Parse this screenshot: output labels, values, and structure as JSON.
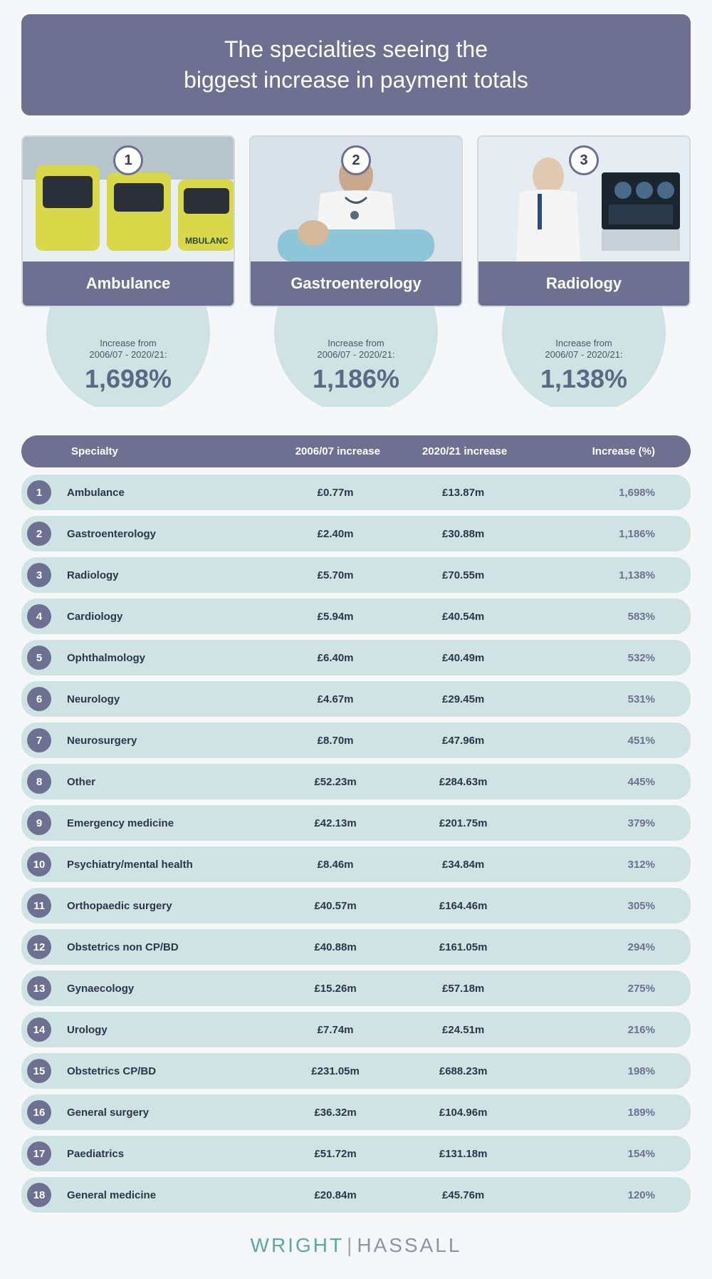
{
  "title": "The specialties seeing the\nbiggest increase in payment totals",
  "colors": {
    "banner": "#6e7091",
    "row_bg": "#cfe3e5",
    "circle_bg": "#cfe3e5",
    "text_dark": "#2d3548",
    "pct_text": "#6e7091",
    "page_bg": "#f5f7f9"
  },
  "increase_label_line1": "Increase from",
  "increase_label_line2": "2006/07 - 2020/21:",
  "top3": [
    {
      "rank": "1",
      "name": "Ambulance",
      "pct": "1,698%"
    },
    {
      "rank": "2",
      "name": "Gastroenterology",
      "pct": "1,186%"
    },
    {
      "rank": "3",
      "name": "Radiology",
      "pct": "1,138%"
    }
  ],
  "table": {
    "columns": [
      "Specialty",
      "2006/07 increase",
      "2020/21 increase",
      "Increase (%)"
    ],
    "rows": [
      {
        "rank": "1",
        "specialty": "Ambulance",
        "v1": "£0.77m",
        "v2": "£13.87m",
        "pct": "1,698%"
      },
      {
        "rank": "2",
        "specialty": "Gastroenterology",
        "v1": "£2.40m",
        "v2": "£30.88m",
        "pct": "1,186%"
      },
      {
        "rank": "3",
        "specialty": "Radiology",
        "v1": "£5.70m",
        "v2": "£70.55m",
        "pct": "1,138%"
      },
      {
        "rank": "4",
        "specialty": "Cardiology",
        "v1": "£5.94m",
        "v2": "£40.54m",
        "pct": "583%"
      },
      {
        "rank": "5",
        "specialty": "Ophthalmology",
        "v1": "£6.40m",
        "v2": "£40.49m",
        "pct": "532%"
      },
      {
        "rank": "6",
        "specialty": "Neurology",
        "v1": "£4.67m",
        "v2": "£29.45m",
        "pct": "531%"
      },
      {
        "rank": "7",
        "specialty": "Neurosurgery",
        "v1": "£8.70m",
        "v2": "£47.96m",
        "pct": "451%"
      },
      {
        "rank": "8",
        "specialty": "Other",
        "v1": "£52.23m",
        "v2": "£284.63m",
        "pct": "445%"
      },
      {
        "rank": "9",
        "specialty": "Emergency medicine",
        "v1": "£42.13m",
        "v2": "£201.75m",
        "pct": "379%"
      },
      {
        "rank": "10",
        "specialty": "Psychiatry/mental health",
        "v1": "£8.46m",
        "v2": "£34.84m",
        "pct": "312%"
      },
      {
        "rank": "11",
        "specialty": "Orthopaedic surgery",
        "v1": "£40.57m",
        "v2": "£164.46m",
        "pct": "305%"
      },
      {
        "rank": "12",
        "specialty": "Obstetrics non CP/BD",
        "v1": "£40.88m",
        "v2": "£161.05m",
        "pct": "294%"
      },
      {
        "rank": "13",
        "specialty": "Gynaecology",
        "v1": "£15.26m",
        "v2": "£57.18m",
        "pct": "275%"
      },
      {
        "rank": "14",
        "specialty": "Urology",
        "v1": "£7.74m",
        "v2": "£24.51m",
        "pct": "216%"
      },
      {
        "rank": "15",
        "specialty": "Obstetrics CP/BD",
        "v1": "£231.05m",
        "v2": "£688.23m",
        "pct": "198%"
      },
      {
        "rank": "16",
        "specialty": "General surgery",
        "v1": "£36.32m",
        "v2": "£104.96m",
        "pct": "189%"
      },
      {
        "rank": "17",
        "specialty": "Paediatrics",
        "v1": "£51.72m",
        "v2": "£131.18m",
        "pct": "154%"
      },
      {
        "rank": "18",
        "specialty": "General medicine",
        "v1": "£20.84m",
        "v2": "£45.76m",
        "pct": "120%"
      }
    ]
  },
  "footer": {
    "left": "WRIGHT",
    "right": "HASSALL"
  }
}
